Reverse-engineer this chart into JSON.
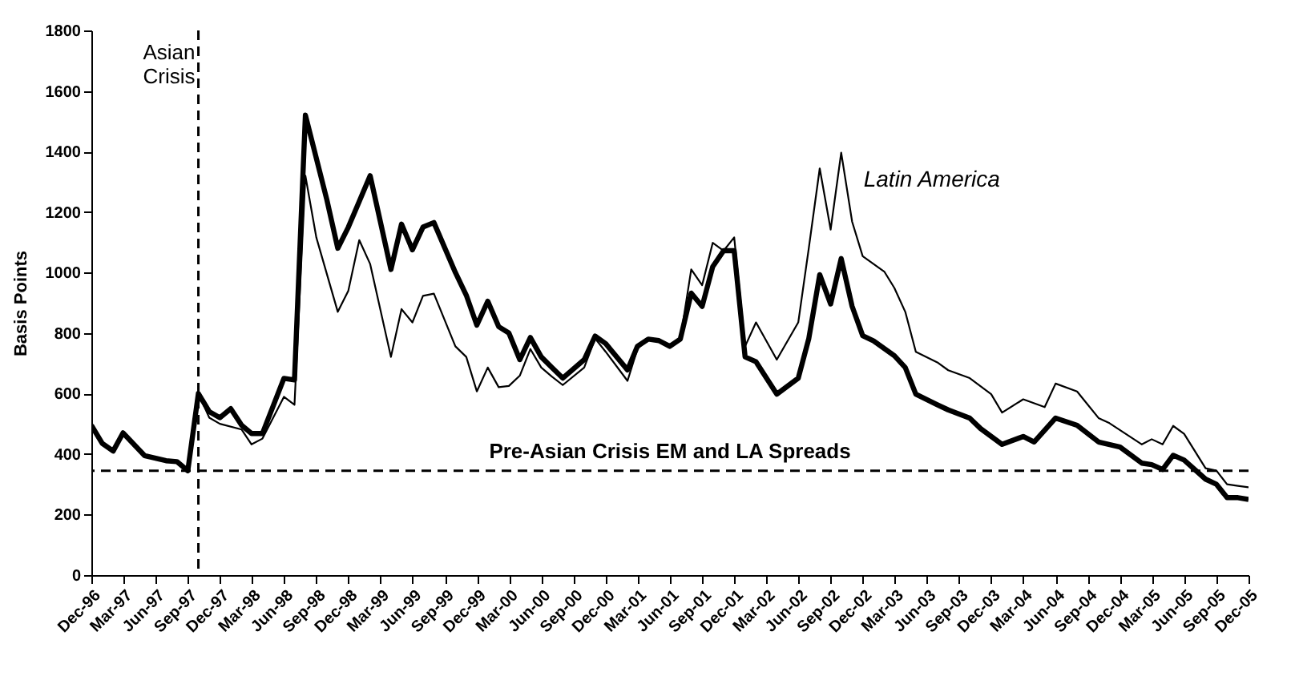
{
  "chart_data": {
    "type": "line",
    "ylabel": "Basis Points",
    "ylim": [
      0,
      1800
    ],
    "yticks": [
      0,
      200,
      400,
      600,
      800,
      1000,
      1200,
      1400,
      1600,
      1800
    ],
    "xlim": [
      "1996-12",
      "2005-12"
    ],
    "xticks": [
      {
        "value": "1996-12",
        "label": "Dec-96"
      },
      {
        "value": "1997-03",
        "label": "Mar-97"
      },
      {
        "value": "1997-06",
        "label": "Jun-97"
      },
      {
        "value": "1997-09",
        "label": "Sep-97"
      },
      {
        "value": "1997-12",
        "label": "Dec-97"
      },
      {
        "value": "1998-03",
        "label": "Mar-98"
      },
      {
        "value": "1998-06",
        "label": "Jun-98"
      },
      {
        "value": "1998-09",
        "label": "Sep-98"
      },
      {
        "value": "1998-12",
        "label": "Dec-98"
      },
      {
        "value": "1999-03",
        "label": "Mar-99"
      },
      {
        "value": "1999-06",
        "label": "Jun-99"
      },
      {
        "value": "1999-09",
        "label": "Sep-99"
      },
      {
        "value": "1999-12",
        "label": "Dec-99"
      },
      {
        "value": "2000-03",
        "label": "Mar-00"
      },
      {
        "value": "2000-06",
        "label": "Jun-00"
      },
      {
        "value": "2000-09",
        "label": "Sep-00"
      },
      {
        "value": "2000-12",
        "label": "Dec-00"
      },
      {
        "value": "2001-03",
        "label": "Mar-01"
      },
      {
        "value": "2001-06",
        "label": "Jun-01"
      },
      {
        "value": "2001-09",
        "label": "Sep-01"
      },
      {
        "value": "2001-12",
        "label": "Dec-01"
      },
      {
        "value": "2002-03",
        "label": "Mar-02"
      },
      {
        "value": "2002-06",
        "label": "Jun-02"
      },
      {
        "value": "2002-09",
        "label": "Sep-02"
      },
      {
        "value": "2002-12",
        "label": "Dec-02"
      },
      {
        "value": "2003-03",
        "label": "Mar-03"
      },
      {
        "value": "2003-06",
        "label": "Jun-03"
      },
      {
        "value": "2003-09",
        "label": "Sep-03"
      },
      {
        "value": "2003-12",
        "label": "Dec-03"
      },
      {
        "value": "2004-03",
        "label": "Mar-04"
      },
      {
        "value": "2004-06",
        "label": "Jun-04"
      },
      {
        "value": "2004-09",
        "label": "Sep-04"
      },
      {
        "value": "2004-12",
        "label": "Dec-04"
      },
      {
        "value": "2005-03",
        "label": "Mar-05"
      },
      {
        "value": "2005-06",
        "label": "Jun-05"
      },
      {
        "value": "2005-09",
        "label": "Sep-05"
      },
      {
        "value": "2005-12",
        "label": "Dec-05"
      }
    ],
    "grid": false,
    "series": [
      {
        "color": "#000000",
        "x": [
          "1996-12",
          "1997-01",
          "1997-02",
          "1997-03",
          "1997-05",
          "1997-07",
          "1997-08",
          "1997-09",
          "1997-10",
          "1997-11",
          "1997-12",
          "1998-01",
          "1998-02",
          "1998-03",
          "1998-04",
          "1998-06",
          "1998-07",
          "1998-08",
          "1998-10",
          "1998-11",
          "1998-12",
          "1999-02",
          "1999-04",
          "1999-05",
          "1999-06",
          "1999-07",
          "1999-08",
          "1999-10",
          "1999-11",
          "1999-12",
          "2000-01",
          "2000-02",
          "2000-03",
          "2000-04",
          "2000-05",
          "2000-06",
          "2000-07",
          "2000-08",
          "2000-10",
          "2000-11",
          "2000-12",
          "2001-02",
          "2001-03",
          "2001-04",
          "2001-05",
          "2001-06",
          "2001-07",
          "2001-08",
          "2001-09",
          "2001-10",
          "2001-11",
          "2001-12",
          "2002-01",
          "2002-02",
          "2002-04",
          "2002-06",
          "2002-07",
          "2002-08",
          "2002-09",
          "2002-10",
          "2002-11",
          "2002-12",
          "2003-01",
          "2003-03",
          "2003-04",
          "2003-05",
          "2003-07",
          "2003-08",
          "2003-10",
          "2003-11",
          "2004-01",
          "2004-03",
          "2004-04",
          "2004-06",
          "2004-08",
          "2004-10",
          "2004-12",
          "2005-02",
          "2005-03",
          "2005-04",
          "2005-05",
          "2005-06",
          "2005-08",
          "2005-09",
          "2005-10",
          "2005-11",
          "2005-12"
        ],
        "values": [
          495,
          435,
          410,
          470,
          395,
          378,
          375,
          345,
          600,
          540,
          520,
          550,
          495,
          468,
          468,
          650,
          645,
          1520,
          1240,
          1080,
          1150,
          1320,
          1010,
          1160,
          1075,
          1150,
          1165,
          1000,
          925,
          826,
          905,
          821,
          800,
          712,
          785,
          721,
          686,
          651,
          712,
          790,
          765,
          678,
          756,
          780,
          775,
          756,
          780,
          932,
          888,
          1019,
          1072,
          1072,
          721,
          705,
          598,
          651,
          782,
          993,
          896,
          1046,
          888,
          791,
          774,
          725,
          686,
          598,
          563,
          546,
          519,
          484,
          432,
          458,
          440,
          519,
          495,
          440,
          423,
          370,
          365,
          349,
          396,
          380,
          317,
          300,
          256,
          256,
          250
        ]
      },
      {
        "name": "Latin America",
        "color": "#000000",
        "x": [
          "1996-12",
          "1997-01",
          "1997-02",
          "1997-03",
          "1997-05",
          "1997-07",
          "1997-08",
          "1997-09",
          "1997-10",
          "1997-11",
          "1997-12",
          "1998-02",
          "1998-03",
          "1998-04",
          "1998-06",
          "1998-07",
          "1998-08",
          "1998-09",
          "1998-11",
          "1998-12",
          "1999-01",
          "1999-02",
          "1999-04",
          "1999-05",
          "1999-06",
          "1999-07",
          "1999-08",
          "1999-10",
          "1999-11",
          "1999-12",
          "2000-01",
          "2000-02",
          "2000-03",
          "2000-04",
          "2000-05",
          "2000-06",
          "2000-07",
          "2000-08",
          "2000-10",
          "2000-11",
          "2000-12",
          "2001-02",
          "2001-03",
          "2001-04",
          "2001-05",
          "2001-06",
          "2001-07",
          "2001-08",
          "2001-09",
          "2001-10",
          "2001-11",
          "2001-12",
          "2002-01",
          "2002-02",
          "2002-04",
          "2002-06",
          "2002-07",
          "2002-08",
          "2002-09",
          "2002-10",
          "2002-11",
          "2002-12",
          "2003-02",
          "2003-03",
          "2003-04",
          "2003-05",
          "2003-07",
          "2003-08",
          "2003-10",
          "2003-12",
          "2004-01",
          "2004-03",
          "2004-05",
          "2004-06",
          "2004-08",
          "2004-10",
          "2004-11",
          "2005-02",
          "2005-03",
          "2005-04",
          "2005-05",
          "2005-06",
          "2005-08",
          "2005-09",
          "2005-10",
          "2005-11",
          "2005-12"
        ],
        "values": [
          495,
          435,
          410,
          470,
          395,
          378,
          370,
          345,
          600,
          520,
          500,
          481,
          432,
          451,
          589,
          563,
          1320,
          1116,
          870,
          940,
          1107,
          1028,
          721,
          879,
          835,
          923,
          930,
          756,
          721,
          607,
          686,
          621,
          625,
          659,
          747,
          686,
          656,
          628,
          686,
          782,
          738,
          642,
          747,
          782,
          775,
          760,
          780,
          1010,
          958,
          1098,
          1072,
          1116,
          756,
          835,
          712,
          835,
          1081,
          1344,
          1142,
          1396,
          1168,
          1054,
          1002,
          949,
          870,
          738,
          703,
          677,
          651,
          598,
          537,
          581,
          555,
          633,
          607,
          519,
          502,
          432,
          449,
          432,
          493,
          467,
          353,
          345,
          300,
          295,
          290
        ]
      }
    ],
    "ref_lines": [
      {
        "axis": "y",
        "value": 345,
        "label": "Pre-Asian Crisis EM and LA Spreads",
        "line_style": "dashed",
        "color": "#000000"
      },
      {
        "axis": "x",
        "value": "1997-10",
        "label": "Asian Crisis",
        "line_style": "dashed",
        "color": "#000000"
      }
    ]
  }
}
